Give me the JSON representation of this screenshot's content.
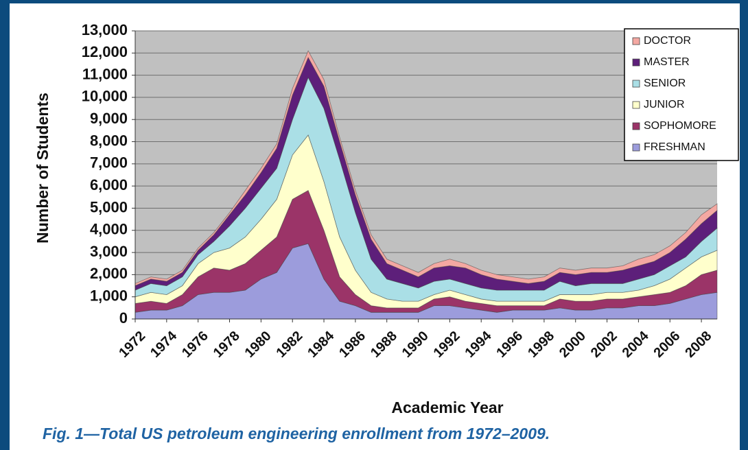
{
  "chart_data": {
    "type": "stacked-area",
    "caption": "Fig. 1—Total US petroleum engineering enrollment from 1972–2009.",
    "xlabel": "Academic Year",
    "ylabel": "Number of Students",
    "x": [
      1972,
      1973,
      1974,
      1975,
      1976,
      1977,
      1978,
      1979,
      1980,
      1981,
      1982,
      1983,
      1984,
      1985,
      1986,
      1987,
      1988,
      1989,
      1990,
      1991,
      1992,
      1993,
      1994,
      1995,
      1996,
      1997,
      1998,
      1999,
      2000,
      2001,
      2002,
      2003,
      2004,
      2005,
      2006,
      2007,
      2008,
      2009
    ],
    "xlim": [
      1972,
      2009
    ],
    "xticks": [
      1972,
      1974,
      1976,
      1978,
      1980,
      1982,
      1984,
      1986,
      1988,
      1990,
      1992,
      1994,
      1996,
      1998,
      2000,
      2002,
      2004,
      2006,
      2008
    ],
    "ylim": [
      0,
      13000
    ],
    "yticks": [
      0,
      {
        "value": 1000,
        "label": "1,000"
      },
      {
        "value": 2000,
        "label": "2,000"
      },
      {
        "value": 3000,
        "label": "3,000"
      },
      {
        "value": 4000,
        "label": "4,000"
      },
      {
        "value": 5000,
        "label": "5,000"
      },
      {
        "value": 6000,
        "label": "6,000"
      },
      {
        "value": 7000,
        "label": "7,000"
      },
      {
        "value": 8000,
        "label": "8,000"
      },
      {
        "value": 9000,
        "label": "9,000"
      },
      {
        "value": 10000,
        "label": "10,000"
      },
      {
        "value": 11000,
        "label": "11,000"
      },
      {
        "value": 12000,
        "label": "12,000"
      },
      {
        "value": 13000,
        "label": "13,000"
      }
    ],
    "grid": true,
    "legend": "top-right",
    "series": [
      {
        "name": "FRESHMAN",
        "color": "#9c9cdc",
        "values": [
          300,
          400,
          400,
          600,
          1100,
          1200,
          1200,
          1300,
          1800,
          2100,
          3200,
          3400,
          1800,
          800,
          600,
          300,
          300,
          300,
          300,
          600,
          600,
          500,
          400,
          300,
          400,
          400,
          400,
          500,
          400,
          400,
          500,
          500,
          600,
          600,
          700,
          900,
          1100,
          1200
        ]
      },
      {
        "name": "SOPHOMORE",
        "color": "#9b3468",
        "values": [
          400,
          400,
          300,
          500,
          800,
          1100,
          1000,
          1200,
          1300,
          1600,
          2200,
          2400,
          2200,
          1100,
          500,
          300,
          200,
          200,
          200,
          300,
          400,
          300,
          300,
          300,
          200,
          200,
          200,
          400,
          400,
          400,
          400,
          400,
          400,
          500,
          500,
          600,
          900,
          1000
        ]
      },
      {
        "name": "JUNIOR",
        "color": "#ffffcc",
        "values": [
          300,
          400,
          400,
          400,
          600,
          700,
          1000,
          1200,
          1400,
          1700,
          2000,
          2500,
          2200,
          1800,
          1100,
          600,
          400,
          300,
          300,
          200,
          300,
          300,
          200,
          200,
          200,
          200,
          200,
          200,
          300,
          300,
          300,
          300,
          300,
          400,
          600,
          800,
          800,
          900
        ]
      },
      {
        "name": "SENIOR",
        "color": "#aadfe6",
        "values": [
          300,
          400,
          400,
          400,
          400,
          500,
          1000,
          1300,
          1400,
          1400,
          1600,
          2600,
          3300,
          3500,
          2600,
          1500,
          900,
          800,
          600,
          600,
          500,
          500,
          500,
          500,
          500,
          500,
          500,
          600,
          400,
          500,
          400,
          400,
          500,
          500,
          600,
          500,
          700,
          1000
        ]
      },
      {
        "name": "MASTER",
        "color": "#5d1f7a",
        "values": [
          200,
          200,
          200,
          200,
          200,
          300,
          500,
          600,
          700,
          900,
          1100,
          900,
          1000,
          800,
          800,
          900,
          700,
          600,
          500,
          600,
          600,
          700,
          600,
          500,
          400,
          300,
          400,
          400,
          500,
          500,
          500,
          600,
          600,
          600,
          600,
          800,
          800,
          800
        ]
      },
      {
        "name": "DOCTOR",
        "color": "#f4a8a2",
        "values": [
          100,
          100,
          100,
          100,
          100,
          100,
          100,
          200,
          200,
          200,
          300,
          300,
          300,
          200,
          200,
          200,
          200,
          200,
          200,
          200,
          300,
          200,
          200,
          200,
          200,
          200,
          200,
          200,
          200,
          200,
          200,
          200,
          300,
          300,
          300,
          300,
          400,
          300
        ]
      }
    ]
  }
}
